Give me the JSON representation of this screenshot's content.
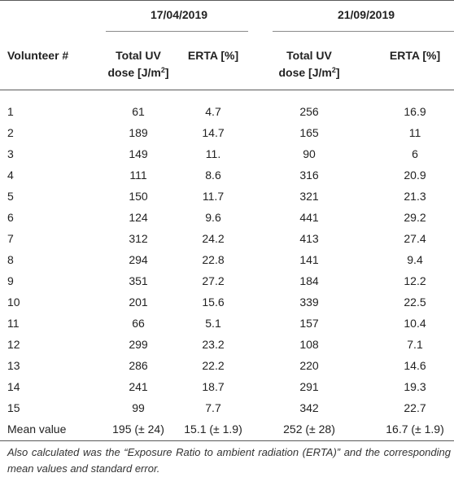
{
  "header": {
    "date1": "17/04/2019",
    "date2": "21/09/2019",
    "col_volunteer": "Volunteer #",
    "col_dose_line1": "Total UV",
    "col_dose_line2": "dose [J/m",
    "col_dose_sup": "2",
    "col_dose_end": "]",
    "col_erta": "ERTA [%]"
  },
  "rows": [
    {
      "v": "1",
      "d1": "61",
      "e1": "4.7",
      "d2": "256",
      "e2": "16.9"
    },
    {
      "v": "2",
      "d1": "189",
      "e1": "14.7",
      "d2": "165",
      "e2": "11"
    },
    {
      "v": "3",
      "d1": "149",
      "e1": "11.",
      "d2": "90",
      "e2": "6"
    },
    {
      "v": "4",
      "d1": "111",
      "e1": "8.6",
      "d2": "316",
      "e2": "20.9"
    },
    {
      "v": "5",
      "d1": "150",
      "e1": "11.7",
      "d2": "321",
      "e2": "21.3"
    },
    {
      "v": "6",
      "d1": "124",
      "e1": "9.6",
      "d2": "441",
      "e2": "29.2"
    },
    {
      "v": "7",
      "d1": "312",
      "e1": "24.2",
      "d2": "413",
      "e2": "27.4"
    },
    {
      "v": "8",
      "d1": "294",
      "e1": "22.8",
      "d2": "141",
      "e2": "9.4"
    },
    {
      "v": "9",
      "d1": "351",
      "e1": "27.2",
      "d2": "184",
      "e2": "12.2"
    },
    {
      "v": "10",
      "d1": "201",
      "e1": "15.6",
      "d2": "339",
      "e2": "22.5"
    },
    {
      "v": "11",
      "d1": "66",
      "e1": "5.1",
      "d2": "157",
      "e2": "10.4"
    },
    {
      "v": "12",
      "d1": "299",
      "e1": "23.2",
      "d2": "108",
      "e2": "7.1"
    },
    {
      "v": "13",
      "d1": "286",
      "e1": "22.2",
      "d2": "220",
      "e2": "14.6"
    },
    {
      "v": "14",
      "d1": "241",
      "e1": "18.7",
      "d2": "291",
      "e2": "19.3"
    },
    {
      "v": "15",
      "d1": "99",
      "e1": "7.7",
      "d2": "342",
      "e2": "22.7"
    }
  ],
  "mean": {
    "v": "Mean value",
    "d1": "195 (± 24)",
    "e1": "15.1 (± 1.9)",
    "d2": "252 (± 28)",
    "e2": "16.7 (± 1.9)"
  },
  "footnote": "Also calculated was the “Exposure Ratio to ambient radiation (ERTA)” and the corresponding mean values and standard error."
}
